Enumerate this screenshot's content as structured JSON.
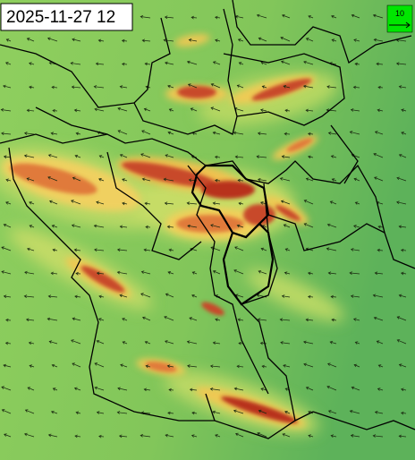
{
  "timestamp": "2025-11-27 12",
  "legend": {
    "label": "10"
  }
}
